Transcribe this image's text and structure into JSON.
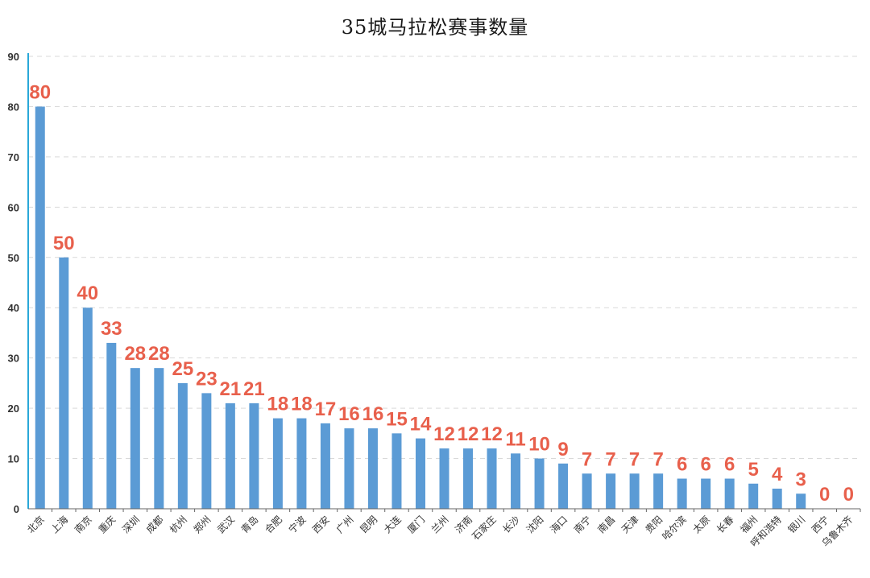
{
  "chart_data": {
    "type": "bar",
    "title": "35城马拉松赛事数量",
    "categories": [
      "北京",
      "上海",
      "南京",
      "重庆",
      "深圳",
      "成都",
      "杭州",
      "郑州",
      "武汉",
      "青岛",
      "合肥",
      "宁波",
      "西安",
      "广州",
      "昆明",
      "大连",
      "厦门",
      "兰州",
      "济南",
      "石家庄",
      "长沙",
      "沈阳",
      "海口",
      "南宁",
      "南昌",
      "天津",
      "贵阳",
      "哈尔滨",
      "太原",
      "长春",
      "福州",
      "呼和浩特",
      "银川",
      "西宁",
      "乌鲁木齐"
    ],
    "values": [
      80,
      50,
      40,
      33,
      28,
      28,
      25,
      23,
      21,
      21,
      18,
      18,
      17,
      16,
      16,
      15,
      14,
      12,
      12,
      12,
      11,
      10,
      9,
      7,
      7,
      7,
      7,
      6,
      6,
      6,
      5,
      4,
      3,
      0,
      0
    ],
    "ylim": [
      0,
      90
    ],
    "yticks": [
      0,
      10,
      20,
      30,
      40,
      50,
      60,
      70,
      80,
      90
    ],
    "grid": true,
    "bar_color": "#5b9bd5",
    "label_color": "#e8604c",
    "axis_color": "#29a8d8"
  }
}
